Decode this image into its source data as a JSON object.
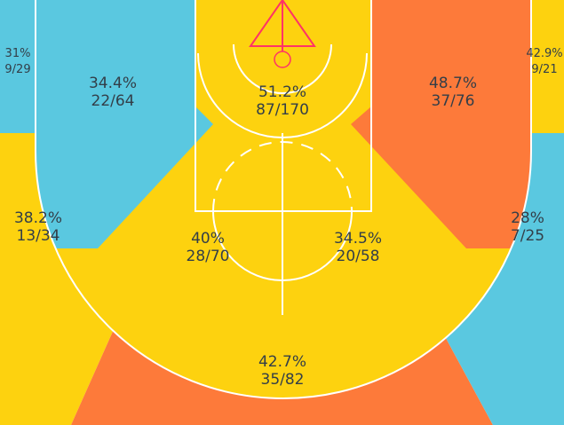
{
  "zones": [
    {
      "pct": "31%",
      "shots": "9/29"
    },
    {
      "pct": "34.4%",
      "shots": "22/64"
    },
    {
      "pct": "51.2%",
      "shots": "87/170"
    },
    {
      "pct": "48.7%",
      "shots": "37/76"
    },
    {
      "pct": "42.9%",
      "shots": "9/21"
    },
    {
      "pct": "38.2%",
      "shots": "13/34"
    },
    {
      "pct": "40%",
      "shots": "28/70"
    },
    {
      "pct": "34.5%",
      "shots": "20/58"
    },
    {
      "pct": "28%",
      "shots": "7/25"
    },
    {
      "pct": "42.7%",
      "shots": "35/82"
    }
  ]
}
